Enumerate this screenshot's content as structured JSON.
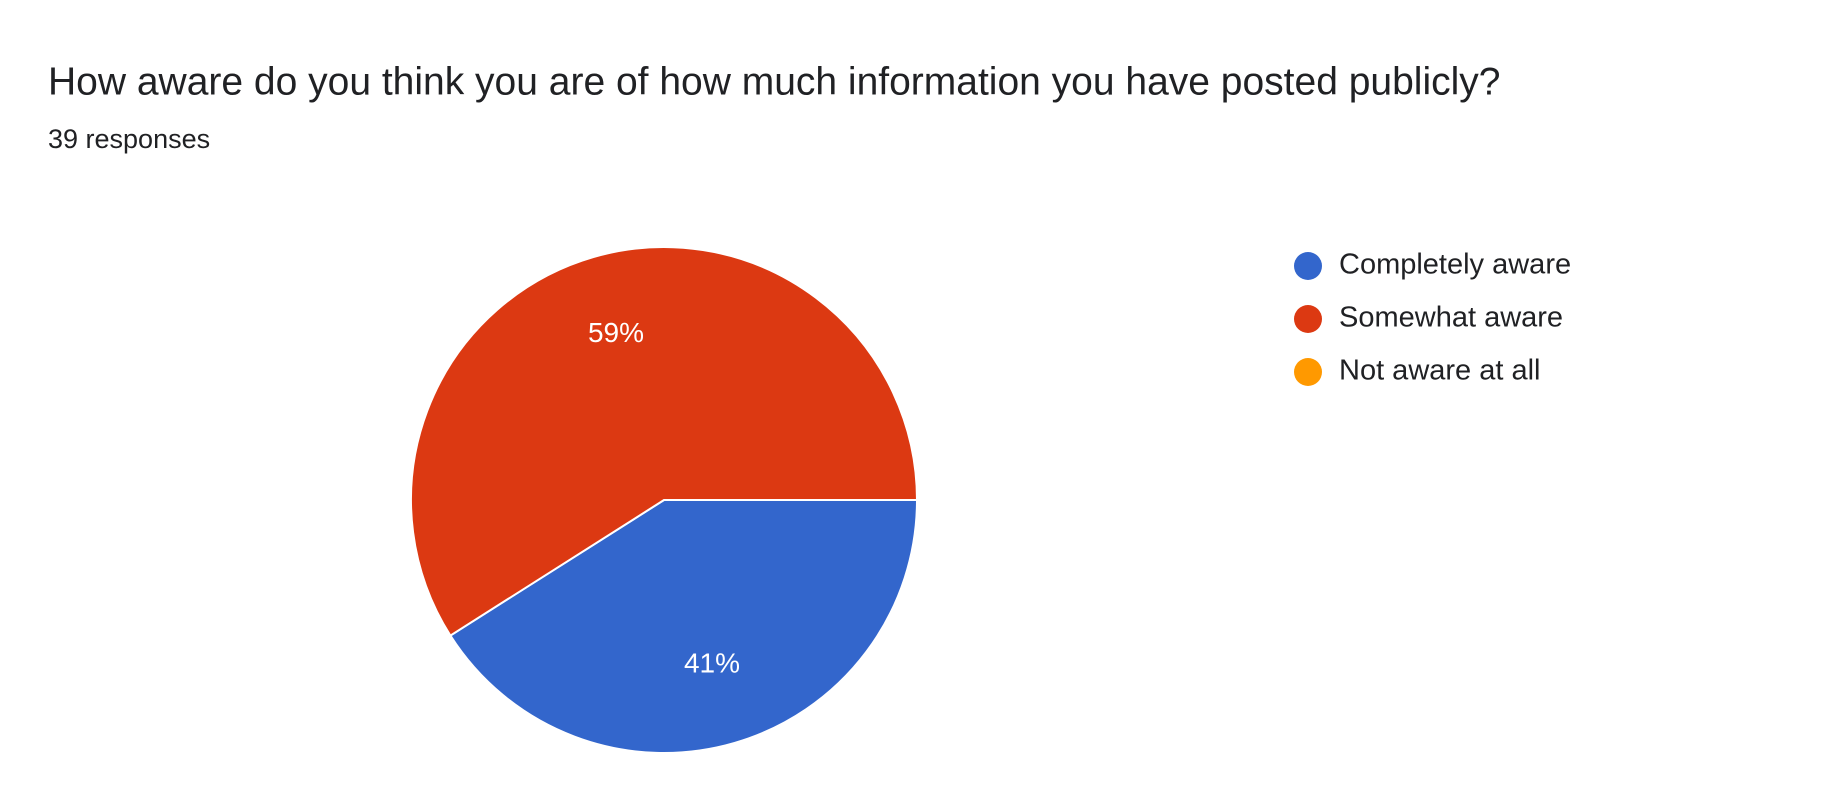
{
  "chart_data": {
    "type": "pie",
    "title": "How aware do you think you are of how much information you have posted publicly?",
    "subtitle": "39 responses",
    "categories": [
      "Completely aware",
      "Somewhat aware",
      "Not aware at all"
    ],
    "values": [
      41,
      59,
      0
    ],
    "value_labels": [
      "41%",
      "59%",
      null
    ],
    "colors": [
      "#3366cc",
      "#dc3912",
      "#ff9900"
    ],
    "legend": "right"
  }
}
